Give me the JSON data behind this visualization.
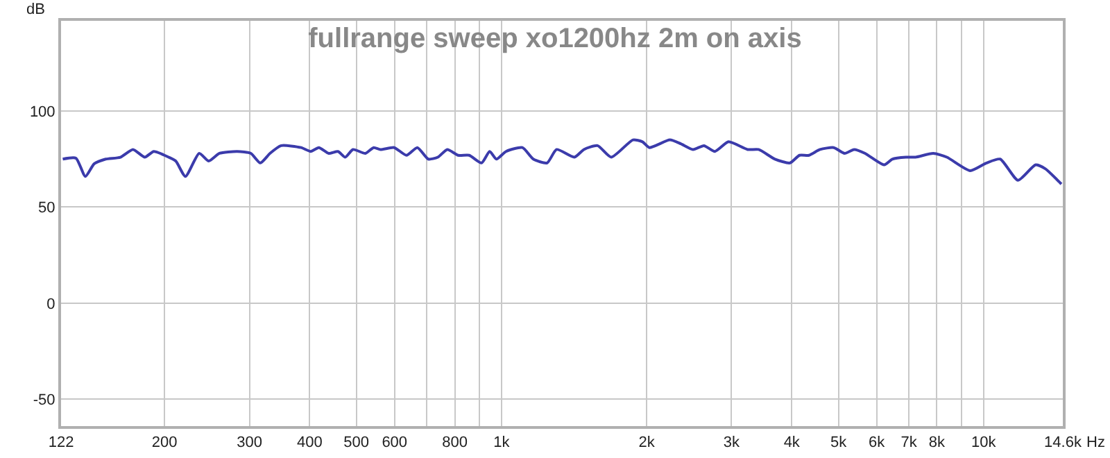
{
  "chart_data": {
    "type": "line",
    "title": "fullrange sweep xo1200hz 2m on axis",
    "xlabel": "Hz",
    "ylabel": "dB",
    "log": "x",
    "grid": true,
    "marker": "none",
    "line_style": "solid",
    "x": [
      123,
      131,
      137,
      143,
      151,
      162,
      172,
      182,
      190,
      204,
      211,
      221,
      236,
      247,
      260,
      283,
      302,
      316,
      331,
      349,
      384,
      402,
      418,
      438,
      458,
      474,
      492,
      522,
      543,
      561,
      599,
      635,
      669,
      705,
      738,
      772,
      813,
      857,
      909,
      945,
      976,
      1022,
      1105,
      1164,
      1243,
      1301,
      1416,
      1482,
      1582,
      1689,
      1874,
      1961,
      2026,
      2235,
      2354,
      2496,
      2630,
      2771,
      2958,
      3239,
      3414,
      3692,
      3966,
      4152,
      4345,
      4578,
      4887,
      5148,
      5388,
      5677,
      6220,
      6467,
      6902,
      7224,
      7863,
      8392,
      9377,
      10140,
      10823,
      11786,
      12823,
      13422,
      14500
    ],
    "series": [
      {
        "color": "#3b3bab",
        "values": [
          75,
          75.5,
          66,
          72.6,
          75,
          76,
          80,
          76,
          79,
          76,
          74,
          66,
          78,
          74,
          78,
          79,
          78,
          73,
          78,
          82,
          81,
          79,
          81,
          78,
          79,
          76,
          80,
          78,
          81,
          80,
          81,
          77,
          81,
          75,
          76,
          80,
          77,
          77,
          73,
          79,
          75,
          79,
          81,
          75,
          73,
          80,
          76,
          80,
          82,
          76,
          85,
          84,
          81,
          85,
          83,
          80,
          82,
          79,
          84,
          80,
          80,
          75,
          73,
          77,
          77,
          80,
          81,
          78,
          80,
          78,
          72,
          75,
          76,
          76,
          78,
          76,
          69,
          73,
          75,
          64,
          72,
          70,
          62
        ]
      }
    ],
    "xlim": [
      122,
      14600
    ],
    "xticks": [
      122,
      200,
      300,
      400,
      500,
      600,
      {
        "value": 700,
        "label": null
      },
      800,
      {
        "value": 900,
        "label": null
      },
      {
        "value": 1000,
        "label": "1k"
      },
      {
        "value": 2000,
        "label": "2k"
      },
      {
        "value": 3000,
        "label": "3k"
      },
      {
        "value": 4000,
        "label": "4k"
      },
      {
        "value": 5000,
        "label": "5k"
      },
      {
        "value": 6000,
        "label": "6k"
      },
      {
        "value": 7000,
        "label": "7k"
      },
      {
        "value": 8000,
        "label": "8k"
      },
      {
        "value": 9000,
        "label": null
      },
      {
        "value": 10000,
        "label": "10k"
      },
      {
        "value": 14600,
        "label": "14.6k"
      }
    ],
    "ylim": [
      -64,
      147
    ],
    "yticks": [
      -50,
      0,
      50,
      100
    ]
  }
}
